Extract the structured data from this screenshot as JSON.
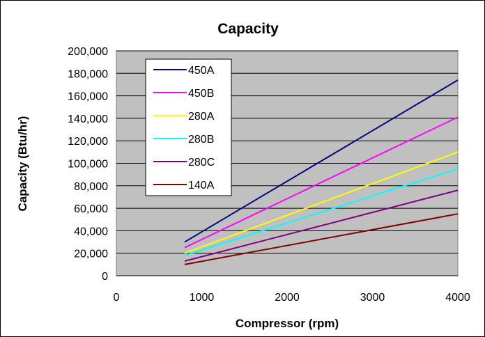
{
  "chart_data": {
    "type": "line",
    "title": "Capacity",
    "xlabel": "Compressor (rpm)",
    "ylabel": "Capacity (Btu/hr)",
    "xlim": [
      0,
      4000
    ],
    "ylim": [
      0,
      200000
    ],
    "x_ticks": [
      0,
      1000,
      2000,
      3000,
      4000
    ],
    "x_tick_labels": [
      "0",
      "1000",
      "2000",
      "3000",
      "4000"
    ],
    "y_ticks": [
      0,
      20000,
      40000,
      60000,
      80000,
      100000,
      120000,
      140000,
      160000,
      180000,
      200000
    ],
    "y_tick_labels": [
      "0",
      "20,000",
      "40,000",
      "60,000",
      "80,000",
      "100,000",
      "120,000",
      "140,000",
      "160,000",
      "180,000",
      "200,000"
    ],
    "grid": "horizontal",
    "plot_background": "#c0c0c0",
    "legend_placement": "top-left",
    "series": [
      {
        "name": "450A",
        "color": "#000080",
        "x": [
          800,
          4000
        ],
        "y": [
          30000,
          174000
        ]
      },
      {
        "name": "450B",
        "color": "#ff00ff",
        "x": [
          800,
          4000
        ],
        "y": [
          25000,
          141000
        ]
      },
      {
        "name": "280A",
        "color": "#ffff00",
        "x": [
          800,
          4000
        ],
        "y": [
          20000,
          110000
        ]
      },
      {
        "name": "280B",
        "color": "#00ffff",
        "x": [
          800,
          4000
        ],
        "y": [
          18000,
          95000
        ]
      },
      {
        "name": "280C",
        "color": "#800080",
        "x": [
          800,
          4000
        ],
        "y": [
          13000,
          76000
        ]
      },
      {
        "name": "140A",
        "color": "#800000",
        "x": [
          800,
          4000
        ],
        "y": [
          10000,
          55000
        ]
      }
    ]
  }
}
